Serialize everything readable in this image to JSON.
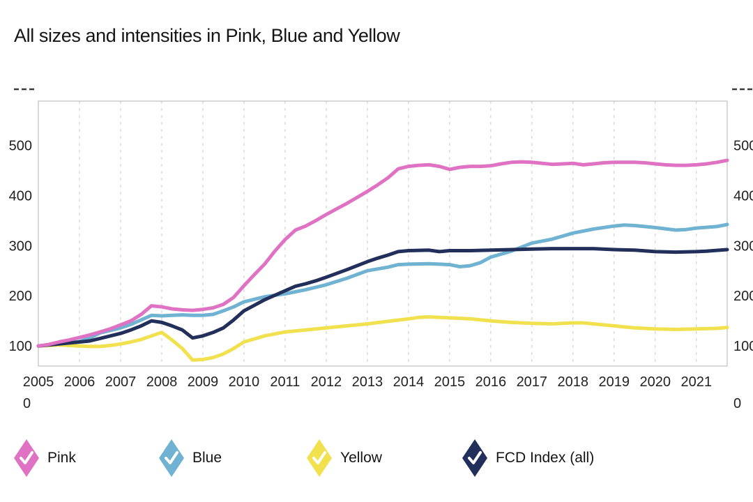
{
  "title": "All sizes and intensities in Pink, Blue and Yellow",
  "chart_data": {
    "type": "line",
    "title": "All sizes and intensities in Pink, Blue and Yellow",
    "xlabel": "",
    "ylabel": "",
    "x_axis": {
      "labels": [
        2005,
        2006,
        2007,
        2008,
        2009,
        2010,
        2011,
        2012,
        2013,
        2014,
        2015,
        2016,
        2017,
        2018,
        2019,
        2020,
        2021
      ],
      "min": 2005,
      "max": 2021.75,
      "gridlines": "dashed-vertical"
    },
    "y_axis": {
      "ticks": [
        100,
        200,
        300,
        400,
        500
      ],
      "tick_sides": "both",
      "zero_label": "0",
      "truncation_marker": "- - -",
      "bottom_value": 60,
      "top_value": 588
    },
    "series": [
      {
        "name": "Yellow",
        "color": "#f2e14f",
        "points": [
          [
            2005,
            100
          ],
          [
            2005.25,
            101
          ],
          [
            2005.5,
            102
          ],
          [
            2005.75,
            101
          ],
          [
            2006,
            100
          ],
          [
            2006.25,
            99
          ],
          [
            2006.5,
            99
          ],
          [
            2006.75,
            101
          ],
          [
            2007,
            104
          ],
          [
            2007.25,
            108
          ],
          [
            2007.5,
            113
          ],
          [
            2007.75,
            120
          ],
          [
            2008,
            127
          ],
          [
            2008.25,
            112
          ],
          [
            2008.5,
            95
          ],
          [
            2008.75,
            72
          ],
          [
            2009,
            73
          ],
          [
            2009.25,
            77
          ],
          [
            2009.5,
            84
          ],
          [
            2009.75,
            95
          ],
          [
            2010,
            108
          ],
          [
            2010.25,
            114
          ],
          [
            2010.5,
            120
          ],
          [
            2011,
            128
          ],
          [
            2011.5,
            132
          ],
          [
            2012,
            136
          ],
          [
            2012.5,
            140
          ],
          [
            2013,
            144
          ],
          [
            2013.5,
            149
          ],
          [
            2014,
            154
          ],
          [
            2014.25,
            157
          ],
          [
            2014.5,
            158
          ],
          [
            2014.75,
            157
          ],
          [
            2015,
            156
          ],
          [
            2015.5,
            154
          ],
          [
            2016,
            150
          ],
          [
            2016.5,
            147
          ],
          [
            2017,
            145
          ],
          [
            2017.5,
            144
          ],
          [
            2017.75,
            145
          ],
          [
            2018,
            146
          ],
          [
            2018.25,
            146
          ],
          [
            2018.5,
            144
          ],
          [
            2019,
            140
          ],
          [
            2019.5,
            136
          ],
          [
            2020,
            134
          ],
          [
            2020.5,
            133
          ],
          [
            2021,
            134
          ],
          [
            2021.5,
            135
          ],
          [
            2021.75,
            137
          ]
        ]
      },
      {
        "name": "Blue",
        "color": "#6fb2d1",
        "points": [
          [
            2005,
            100
          ],
          [
            2005.25,
            102
          ],
          [
            2005.5,
            104
          ],
          [
            2005.75,
            106
          ],
          [
            2006,
            109
          ],
          [
            2006.25,
            116
          ],
          [
            2006.5,
            126
          ],
          [
            2006.75,
            131
          ],
          [
            2007,
            136
          ],
          [
            2007.25,
            143
          ],
          [
            2007.5,
            152
          ],
          [
            2007.75,
            161
          ],
          [
            2008,
            160
          ],
          [
            2008.25,
            161
          ],
          [
            2008.5,
            162
          ],
          [
            2008.75,
            161
          ],
          [
            2009,
            161
          ],
          [
            2009.25,
            163
          ],
          [
            2009.5,
            170
          ],
          [
            2009.75,
            178
          ],
          [
            2010,
            188
          ],
          [
            2010.25,
            193
          ],
          [
            2010.5,
            198
          ],
          [
            2010.75,
            201
          ],
          [
            2011,
            204
          ],
          [
            2011.25,
            208
          ],
          [
            2011.5,
            212
          ],
          [
            2011.75,
            217
          ],
          [
            2012,
            222
          ],
          [
            2012.5,
            235
          ],
          [
            2013,
            250
          ],
          [
            2013.5,
            257
          ],
          [
            2013.75,
            262
          ],
          [
            2014,
            263
          ],
          [
            2014.5,
            264
          ],
          [
            2014.75,
            263
          ],
          [
            2015,
            262
          ],
          [
            2015.25,
            258
          ],
          [
            2015.5,
            260
          ],
          [
            2015.75,
            266
          ],
          [
            2016,
            277
          ],
          [
            2016.5,
            289
          ],
          [
            2017,
            305
          ],
          [
            2017.5,
            313
          ],
          [
            2018,
            325
          ],
          [
            2018.5,
            333
          ],
          [
            2019,
            339
          ],
          [
            2019.25,
            341
          ],
          [
            2019.5,
            340
          ],
          [
            2020,
            336
          ],
          [
            2020.5,
            331
          ],
          [
            2020.75,
            332
          ],
          [
            2021,
            335
          ],
          [
            2021.5,
            338
          ],
          [
            2021.75,
            342
          ]
        ]
      },
      {
        "name": "FCD Index (all)",
        "color": "#232f5b",
        "points": [
          [
            2005,
            100
          ],
          [
            2005.25,
            102
          ],
          [
            2005.5,
            104
          ],
          [
            2005.75,
            106
          ],
          [
            2006,
            108
          ],
          [
            2006.25,
            110
          ],
          [
            2006.5,
            115
          ],
          [
            2006.75,
            120
          ],
          [
            2007,
            125
          ],
          [
            2007.25,
            132
          ],
          [
            2007.5,
            140
          ],
          [
            2007.75,
            150
          ],
          [
            2008,
            147
          ],
          [
            2008.25,
            140
          ],
          [
            2008.5,
            132
          ],
          [
            2008.75,
            116
          ],
          [
            2009,
            120
          ],
          [
            2009.25,
            127
          ],
          [
            2009.5,
            136
          ],
          [
            2009.75,
            152
          ],
          [
            2010,
            170
          ],
          [
            2010.25,
            181
          ],
          [
            2010.5,
            192
          ],
          [
            2010.75,
            201
          ],
          [
            2011,
            210
          ],
          [
            2011.25,
            219
          ],
          [
            2011.5,
            224
          ],
          [
            2011.75,
            230
          ],
          [
            2012,
            237
          ],
          [
            2012.5,
            252
          ],
          [
            2013,
            268
          ],
          [
            2013.25,
            275
          ],
          [
            2013.5,
            281
          ],
          [
            2013.75,
            288
          ],
          [
            2014,
            290
          ],
          [
            2014.5,
            291
          ],
          [
            2014.75,
            288
          ],
          [
            2015,
            290
          ],
          [
            2015.5,
            290
          ],
          [
            2016,
            291
          ],
          [
            2016.5,
            292
          ],
          [
            2017,
            293
          ],
          [
            2017.5,
            294
          ],
          [
            2018,
            294
          ],
          [
            2018.5,
            294
          ],
          [
            2019,
            292
          ],
          [
            2019.5,
            291
          ],
          [
            2020,
            288
          ],
          [
            2020.5,
            287
          ],
          [
            2021,
            288
          ],
          [
            2021.25,
            289
          ],
          [
            2021.75,
            292
          ]
        ]
      },
      {
        "name": "Pink",
        "color": "#df72c3",
        "points": [
          [
            2005,
            100
          ],
          [
            2005.25,
            103
          ],
          [
            2005.5,
            108
          ],
          [
            2005.75,
            112
          ],
          [
            2006,
            117
          ],
          [
            2006.25,
            122
          ],
          [
            2006.5,
            128
          ],
          [
            2006.75,
            134
          ],
          [
            2007,
            142
          ],
          [
            2007.25,
            150
          ],
          [
            2007.5,
            163
          ],
          [
            2007.75,
            180
          ],
          [
            2008,
            178
          ],
          [
            2008.25,
            174
          ],
          [
            2008.5,
            172
          ],
          [
            2008.75,
            171
          ],
          [
            2009,
            173
          ],
          [
            2009.25,
            176
          ],
          [
            2009.5,
            183
          ],
          [
            2009.75,
            197
          ],
          [
            2010,
            220
          ],
          [
            2010.25,
            242
          ],
          [
            2010.5,
            263
          ],
          [
            2010.75,
            289
          ],
          [
            2011,
            312
          ],
          [
            2011.25,
            331
          ],
          [
            2011.5,
            339
          ],
          [
            2011.75,
            350
          ],
          [
            2012,
            362
          ],
          [
            2012.25,
            373
          ],
          [
            2012.5,
            384
          ],
          [
            2012.75,
            396
          ],
          [
            2013,
            408
          ],
          [
            2013.25,
            421
          ],
          [
            2013.5,
            435
          ],
          [
            2013.75,
            453
          ],
          [
            2014,
            458
          ],
          [
            2014.25,
            460
          ],
          [
            2014.5,
            461
          ],
          [
            2014.75,
            458
          ],
          [
            2015,
            452
          ],
          [
            2015.25,
            456
          ],
          [
            2015.5,
            458
          ],
          [
            2015.75,
            458
          ],
          [
            2016,
            459
          ],
          [
            2016.25,
            463
          ],
          [
            2016.5,
            466
          ],
          [
            2016.75,
            467
          ],
          [
            2017,
            466
          ],
          [
            2017.25,
            464
          ],
          [
            2017.5,
            462
          ],
          [
            2017.75,
            463
          ],
          [
            2018,
            464
          ],
          [
            2018.25,
            461
          ],
          [
            2018.5,
            463
          ],
          [
            2018.75,
            465
          ],
          [
            2019,
            466
          ],
          [
            2019.25,
            466
          ],
          [
            2019.5,
            466
          ],
          [
            2019.75,
            465
          ],
          [
            2020,
            463
          ],
          [
            2020.25,
            461
          ],
          [
            2020.5,
            460
          ],
          [
            2020.75,
            460
          ],
          [
            2021,
            461
          ],
          [
            2021.25,
            463
          ],
          [
            2021.5,
            466
          ],
          [
            2021.75,
            470
          ]
        ]
      }
    ],
    "legend": [
      {
        "label": "Pink",
        "color": "#df72c3",
        "marker": "diamond-check"
      },
      {
        "label": "Blue",
        "color": "#6fb2d1",
        "marker": "diamond-check"
      },
      {
        "label": "Yellow",
        "color": "#f2e14f",
        "marker": "diamond-check"
      },
      {
        "label": "FCD Index (all)",
        "color": "#232f5b",
        "marker": "diamond-check"
      }
    ],
    "legend_position": "bottom",
    "grid_color": "#c9c9c9",
    "border_color": "#b3b3b3",
    "check_color": "#ffffff"
  }
}
